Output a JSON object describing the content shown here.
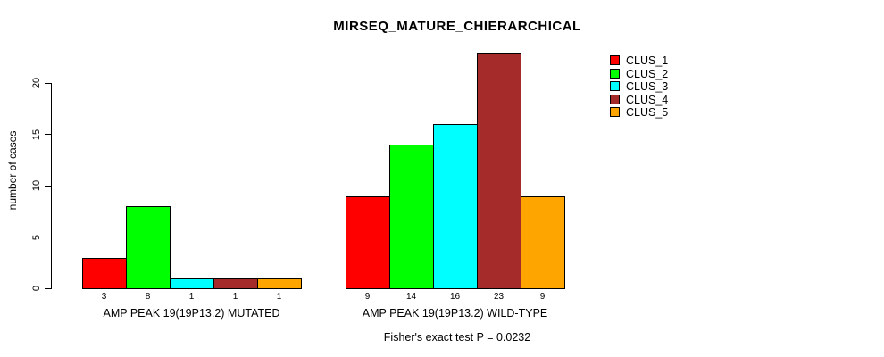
{
  "title": "MIRSEQ_MATURE_CHIERARCHICAL",
  "footer": {
    "text": "Fisher's exact test P = 0.0232"
  },
  "y_axis": {
    "label": "number of cases",
    "ticks": [
      0,
      5,
      10,
      15,
      20
    ]
  },
  "legend": {
    "items": [
      {
        "label": "CLUS_1",
        "color": "#FF0000"
      },
      {
        "label": "CLUS_2",
        "color": "#00FF00"
      },
      {
        "label": "CLUS_3",
        "color": "#00FFFF"
      },
      {
        "label": "CLUS_4",
        "color": "#A52A2A"
      },
      {
        "label": "CLUS_5",
        "color": "#FFA500"
      }
    ]
  },
  "chart_data": {
    "type": "bar",
    "title": "MIRSEQ_MATURE_CHIERARCHICAL",
    "subtitle": "Fisher's exact test P = 0.0232",
    "xlabel": "",
    "ylabel": "number of cases",
    "ylim": [
      0,
      20
    ],
    "yticks": [
      0,
      5,
      10,
      15,
      20
    ],
    "grid": false,
    "legend_position": "top-right",
    "bar_value_labels_shown": true,
    "categories": [
      "AMP PEAK 19(19P13.2) MUTATED",
      "AMP PEAK 19(19P13.2) WILD-TYPE"
    ],
    "series": [
      {
        "name": "CLUS_1",
        "color": "#FF0000",
        "values": [
          3,
          9
        ]
      },
      {
        "name": "CLUS_2",
        "color": "#00FF00",
        "values": [
          8,
          14
        ]
      },
      {
        "name": "CLUS_3",
        "color": "#00FFFF",
        "values": [
          1,
          16
        ]
      },
      {
        "name": "CLUS_4",
        "color": "#A52A2A",
        "values": [
          1,
          23
        ]
      },
      {
        "name": "CLUS_5",
        "color": "#FFA500",
        "values": [
          1,
          9
        ]
      }
    ]
  }
}
